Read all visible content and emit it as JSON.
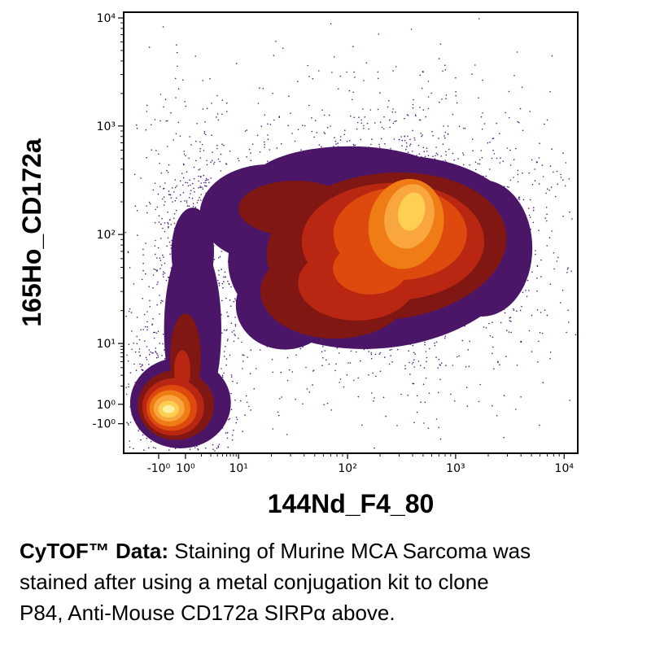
{
  "chart_data": {
    "type": "density-contour",
    "title": "",
    "xlabel": "144Nd_F4_80",
    "ylabel": "165Ho_CD172a",
    "scale": "biexponential (log with compressed linear zero region)",
    "x_ticks": [
      {
        "label": "-10⁰",
        "u": 0.077
      },
      {
        "label": "10⁰",
        "u": 0.136
      },
      {
        "label": "10¹",
        "u": 0.253
      },
      {
        "label": "10²",
        "u": 0.493
      },
      {
        "label": "10³",
        "u": 0.731
      },
      {
        "label": "10⁴",
        "u": 0.97
      }
    ],
    "y_ticks": [
      {
        "label": "10⁴",
        "v": 0.013
      },
      {
        "label": "10³",
        "v": 0.258
      },
      {
        "label": "10²",
        "v": 0.504
      },
      {
        "label": "10¹",
        "v": 0.751
      },
      {
        "label": "10⁰",
        "v": 0.889
      },
      {
        "label": "-10⁰",
        "v": 0.933
      }
    ],
    "dot_color": "#4a1c78",
    "level_colors": [
      "#4b1668",
      "#801713",
      "#b92611",
      "#de4a0d",
      "#f07c16",
      "#f9a63f",
      "#ffcf54",
      "#fff0a0"
    ],
    "populations_note": "three density regions: bright low-low cluster (~10⁰,10⁰); vertical band at x≈0 spanning y 10⁰–10²; large high-density cluster centered ~ (2×10², 1×10²)",
    "contours": [
      {
        "level": 0,
        "ellipses": [
          [
            0.561,
            0.544,
            0.332,
            0.218,
            -6
          ],
          [
            0.319,
            0.456,
            0.151,
            0.111,
            0
          ],
          [
            0.498,
            0.389,
            0.219,
            0.085,
            0
          ],
          [
            0.789,
            0.535,
            0.111,
            0.155,
            0
          ],
          [
            0.355,
            0.664,
            0.108,
            0.101,
            0
          ],
          [
            0.152,
            0.719,
            0.063,
            0.207,
            0
          ],
          [
            0.152,
            0.544,
            0.047,
            0.101,
            0
          ],
          [
            0.125,
            0.886,
            0.111,
            0.103,
            0
          ]
        ]
      },
      {
        "level": 1,
        "ellipses": [
          [
            0.579,
            0.531,
            0.265,
            0.166,
            -6
          ],
          [
            0.378,
            0.445,
            0.125,
            0.063,
            0
          ],
          [
            0.466,
            0.633,
            0.165,
            0.107,
            0
          ],
          [
            0.136,
            0.784,
            0.034,
            0.101,
            0
          ],
          [
            0.115,
            0.891,
            0.084,
            0.079,
            0
          ]
        ]
      },
      {
        "level": 2,
        "ellipses": [
          [
            0.593,
            0.52,
            0.201,
            0.133,
            0
          ],
          [
            0.513,
            0.614,
            0.129,
            0.085,
            0
          ],
          [
            0.129,
            0.812,
            0.018,
            0.046,
            0
          ],
          [
            0.109,
            0.895,
            0.068,
            0.065,
            0
          ]
        ]
      },
      {
        "level": 3,
        "ellipses": [
          [
            0.609,
            0.502,
            0.147,
            0.105,
            0
          ],
          [
            0.543,
            0.581,
            0.082,
            0.059,
            0
          ],
          [
            0.106,
            0.897,
            0.056,
            0.052,
            0
          ]
        ]
      },
      {
        "level": 4,
        "ellipses": [
          [
            0.622,
            0.48,
            0.082,
            0.103,
            14
          ],
          [
            0.102,
            0.898,
            0.045,
            0.041,
            0
          ]
        ]
      },
      {
        "level": 5,
        "ellipses": [
          [
            0.629,
            0.463,
            0.054,
            0.074,
            14
          ],
          [
            0.1,
            0.898,
            0.034,
            0.03,
            0
          ]
        ]
      },
      {
        "level": 6,
        "ellipses": [
          [
            0.634,
            0.452,
            0.029,
            0.044,
            14
          ],
          [
            0.099,
            0.9,
            0.023,
            0.019,
            0
          ]
        ]
      },
      {
        "level": 7,
        "ellipses": [
          [
            0.099,
            0.9,
            0.013,
            0.009,
            0
          ]
        ]
      }
    ],
    "scatter": [
      {
        "kind": "gauss",
        "n": 2200,
        "cx": 0.57,
        "cy": 0.53,
        "sx": 0.185,
        "sy": 0.145
      },
      {
        "kind": "gauss",
        "n": 450,
        "cx": 0.57,
        "cy": 0.5,
        "sx": 0.26,
        "sy": 0.21
      },
      {
        "kind": "gauss",
        "n": 700,
        "cx": 0.152,
        "cy": 0.7,
        "sx": 0.045,
        "sy": 0.185
      },
      {
        "kind": "gauss",
        "n": 150,
        "cx": 0.152,
        "cy": 0.45,
        "sx": 0.05,
        "sy": 0.12
      },
      {
        "kind": "gauss",
        "n": 550,
        "cx": 0.115,
        "cy": 0.89,
        "sx": 0.06,
        "sy": 0.055
      },
      {
        "kind": "gauss",
        "n": 160,
        "cx": 0.068,
        "cy": 0.67,
        "sx": 0.045,
        "sy": 0.2
      },
      {
        "kind": "uniform",
        "n": 140,
        "x0": 0.02,
        "x1": 0.98,
        "y0": 0.06,
        "y1": 0.97
      }
    ],
    "outliers": [
      [
        0.659,
        0.135
      ],
      [
        0.875,
        0.747
      ],
      [
        0.91,
        0.34
      ]
    ],
    "seed": 1337
  },
  "caption": {
    "bold": "CyTOF™ Data:",
    "line1_rest": " Staining of Murine MCA Sarcoma was",
    "line2": "stained after using a metal conjugation kit to clone",
    "line3": "P84, Anti-Mouse CD172a SIRPα above."
  }
}
